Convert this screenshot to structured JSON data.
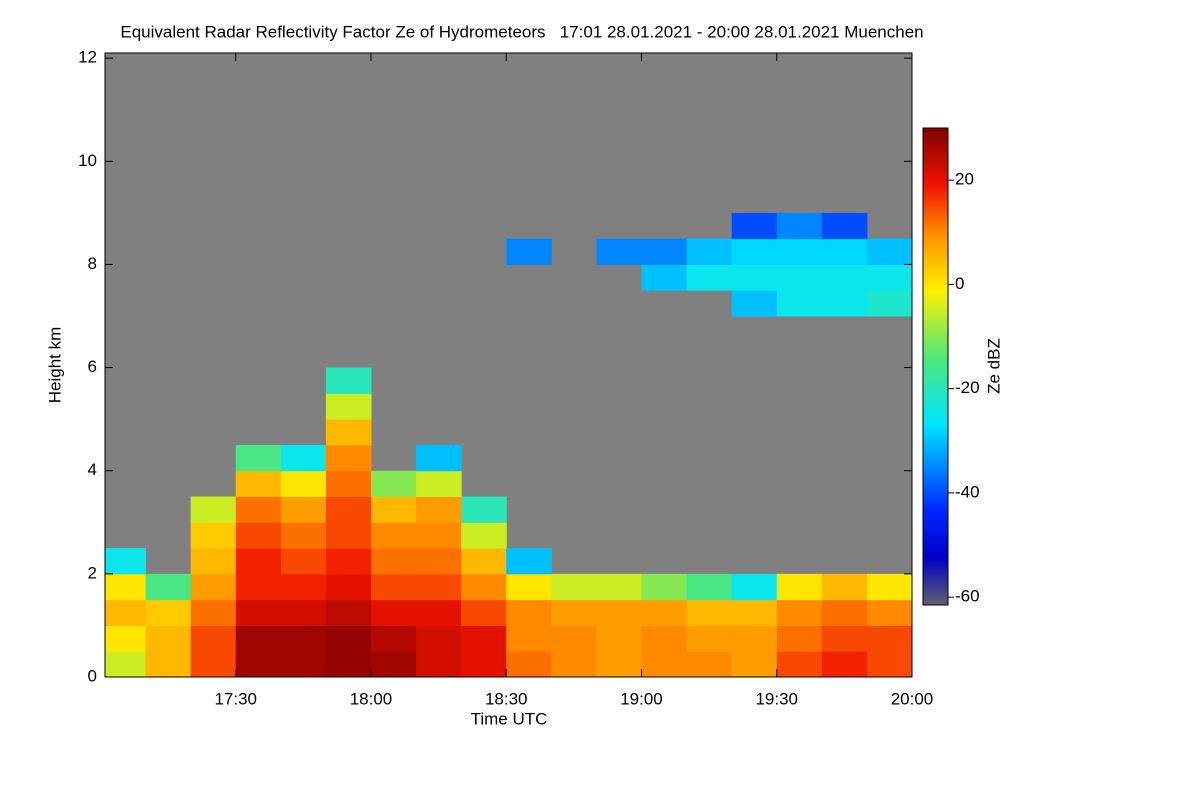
{
  "chart_data": {
    "type": "heatmap",
    "title": "Equivalent Radar Reflectivity Factor Ze of Hydrometeors   17:01 28.01.2021 - 20:00 28.01.2021 Muenchen",
    "xlabel": "Time UTC",
    "ylabel": "Height km",
    "colorbar_label": "Ze dBZ",
    "xlim": [
      "17:01",
      "20:00"
    ],
    "xticks": [
      "17:30",
      "18:00",
      "18:30",
      "19:00",
      "19:30",
      "20:00"
    ],
    "ylim": [
      0,
      12.1
    ],
    "yticks": [
      0,
      2,
      4,
      6,
      8,
      10,
      12
    ],
    "zlim": [
      -61.5,
      30
    ],
    "zticks": [
      20,
      0,
      -20,
      -40,
      -60
    ],
    "background": "#808080",
    "x": [
      "17:00",
      "17:10",
      "17:20",
      "17:30",
      "17:40",
      "17:50",
      "18:00",
      "18:10",
      "18:20",
      "18:30",
      "18:40",
      "18:50",
      "19:00",
      "19:10",
      "19:20",
      "19:30",
      "19:40",
      "19:50",
      "20:00"
    ],
    "y": [
      0,
      0.5,
      1,
      1.5,
      2,
      2.5,
      3,
      3.5,
      4,
      4.5,
      5,
      5.5,
      6,
      6.5,
      7,
      7.5,
      8,
      8.5,
      9
    ],
    "z": [
      [
        -5,
        5,
        15,
        27,
        27,
        28,
        27,
        22,
        20,
        12,
        10,
        8,
        10,
        10,
        8,
        15,
        18,
        15
      ],
      [
        0,
        5,
        15,
        27,
        27,
        28,
        25,
        22,
        20,
        10,
        10,
        8,
        10,
        8,
        8,
        12,
        15,
        15
      ],
      [
        5,
        3,
        12,
        22,
        22,
        24,
        20,
        20,
        15,
        10,
        8,
        8,
        8,
        5,
        5,
        10,
        12,
        10
      ],
      [
        0,
        -15,
        8,
        18,
        18,
        20,
        15,
        15,
        10,
        0,
        -5,
        -5,
        -10,
        -15,
        -25,
        0,
        5,
        0
      ],
      [
        -25,
        null,
        5,
        18,
        15,
        18,
        12,
        12,
        5,
        -30,
        null,
        null,
        null,
        null,
        null,
        null,
        null,
        null
      ],
      [
        null,
        null,
        3,
        15,
        12,
        15,
        10,
        10,
        -5,
        null,
        null,
        null,
        null,
        null,
        null,
        null,
        null,
        null
      ],
      [
        null,
        null,
        -5,
        12,
        8,
        15,
        5,
        8,
        -20,
        null,
        null,
        null,
        null,
        null,
        null,
        null,
        null,
        null
      ],
      [
        null,
        null,
        null,
        5,
        0,
        12,
        -10,
        -5,
        null,
        null,
        null,
        null,
        null,
        null,
        null,
        null,
        null,
        null
      ],
      [
        null,
        null,
        null,
        -15,
        -25,
        10,
        null,
        -30,
        null,
        null,
        null,
        null,
        null,
        null,
        null,
        null,
        null,
        null
      ],
      [
        null,
        null,
        null,
        null,
        null,
        5,
        null,
        null,
        null,
        null,
        null,
        null,
        null,
        null,
        null,
        null,
        null,
        null
      ],
      [
        null,
        null,
        null,
        null,
        null,
        -5,
        null,
        null,
        null,
        null,
        null,
        null,
        null,
        null,
        null,
        null,
        null,
        null
      ],
      [
        null,
        null,
        null,
        null,
        null,
        -20,
        null,
        null,
        null,
        null,
        null,
        null,
        null,
        null,
        null,
        null,
        null,
        null
      ],
      [
        null,
        null,
        null,
        null,
        null,
        null,
        null,
        null,
        null,
        null,
        null,
        null,
        null,
        null,
        null,
        null,
        null,
        null
      ],
      [
        null,
        null,
        null,
        null,
        null,
        null,
        null,
        null,
        null,
        null,
        null,
        null,
        null,
        null,
        null,
        null,
        null,
        null
      ],
      [
        null,
        null,
        null,
        null,
        null,
        null,
        null,
        null,
        null,
        null,
        null,
        null,
        null,
        null,
        -30,
        -25,
        -25,
        -22
      ],
      [
        null,
        null,
        null,
        null,
        null,
        null,
        null,
        null,
        null,
        null,
        null,
        null,
        -30,
        -25,
        -25,
        -25,
        -25,
        -25
      ],
      [
        null,
        null,
        null,
        null,
        null,
        null,
        null,
        null,
        null,
        -35,
        null,
        -35,
        -35,
        -30,
        -28,
        -28,
        -28,
        -30
      ],
      [
        null,
        null,
        null,
        null,
        null,
        null,
        null,
        null,
        null,
        null,
        null,
        null,
        null,
        null,
        -40,
        -35,
        -40,
        null
      ]
    ]
  }
}
